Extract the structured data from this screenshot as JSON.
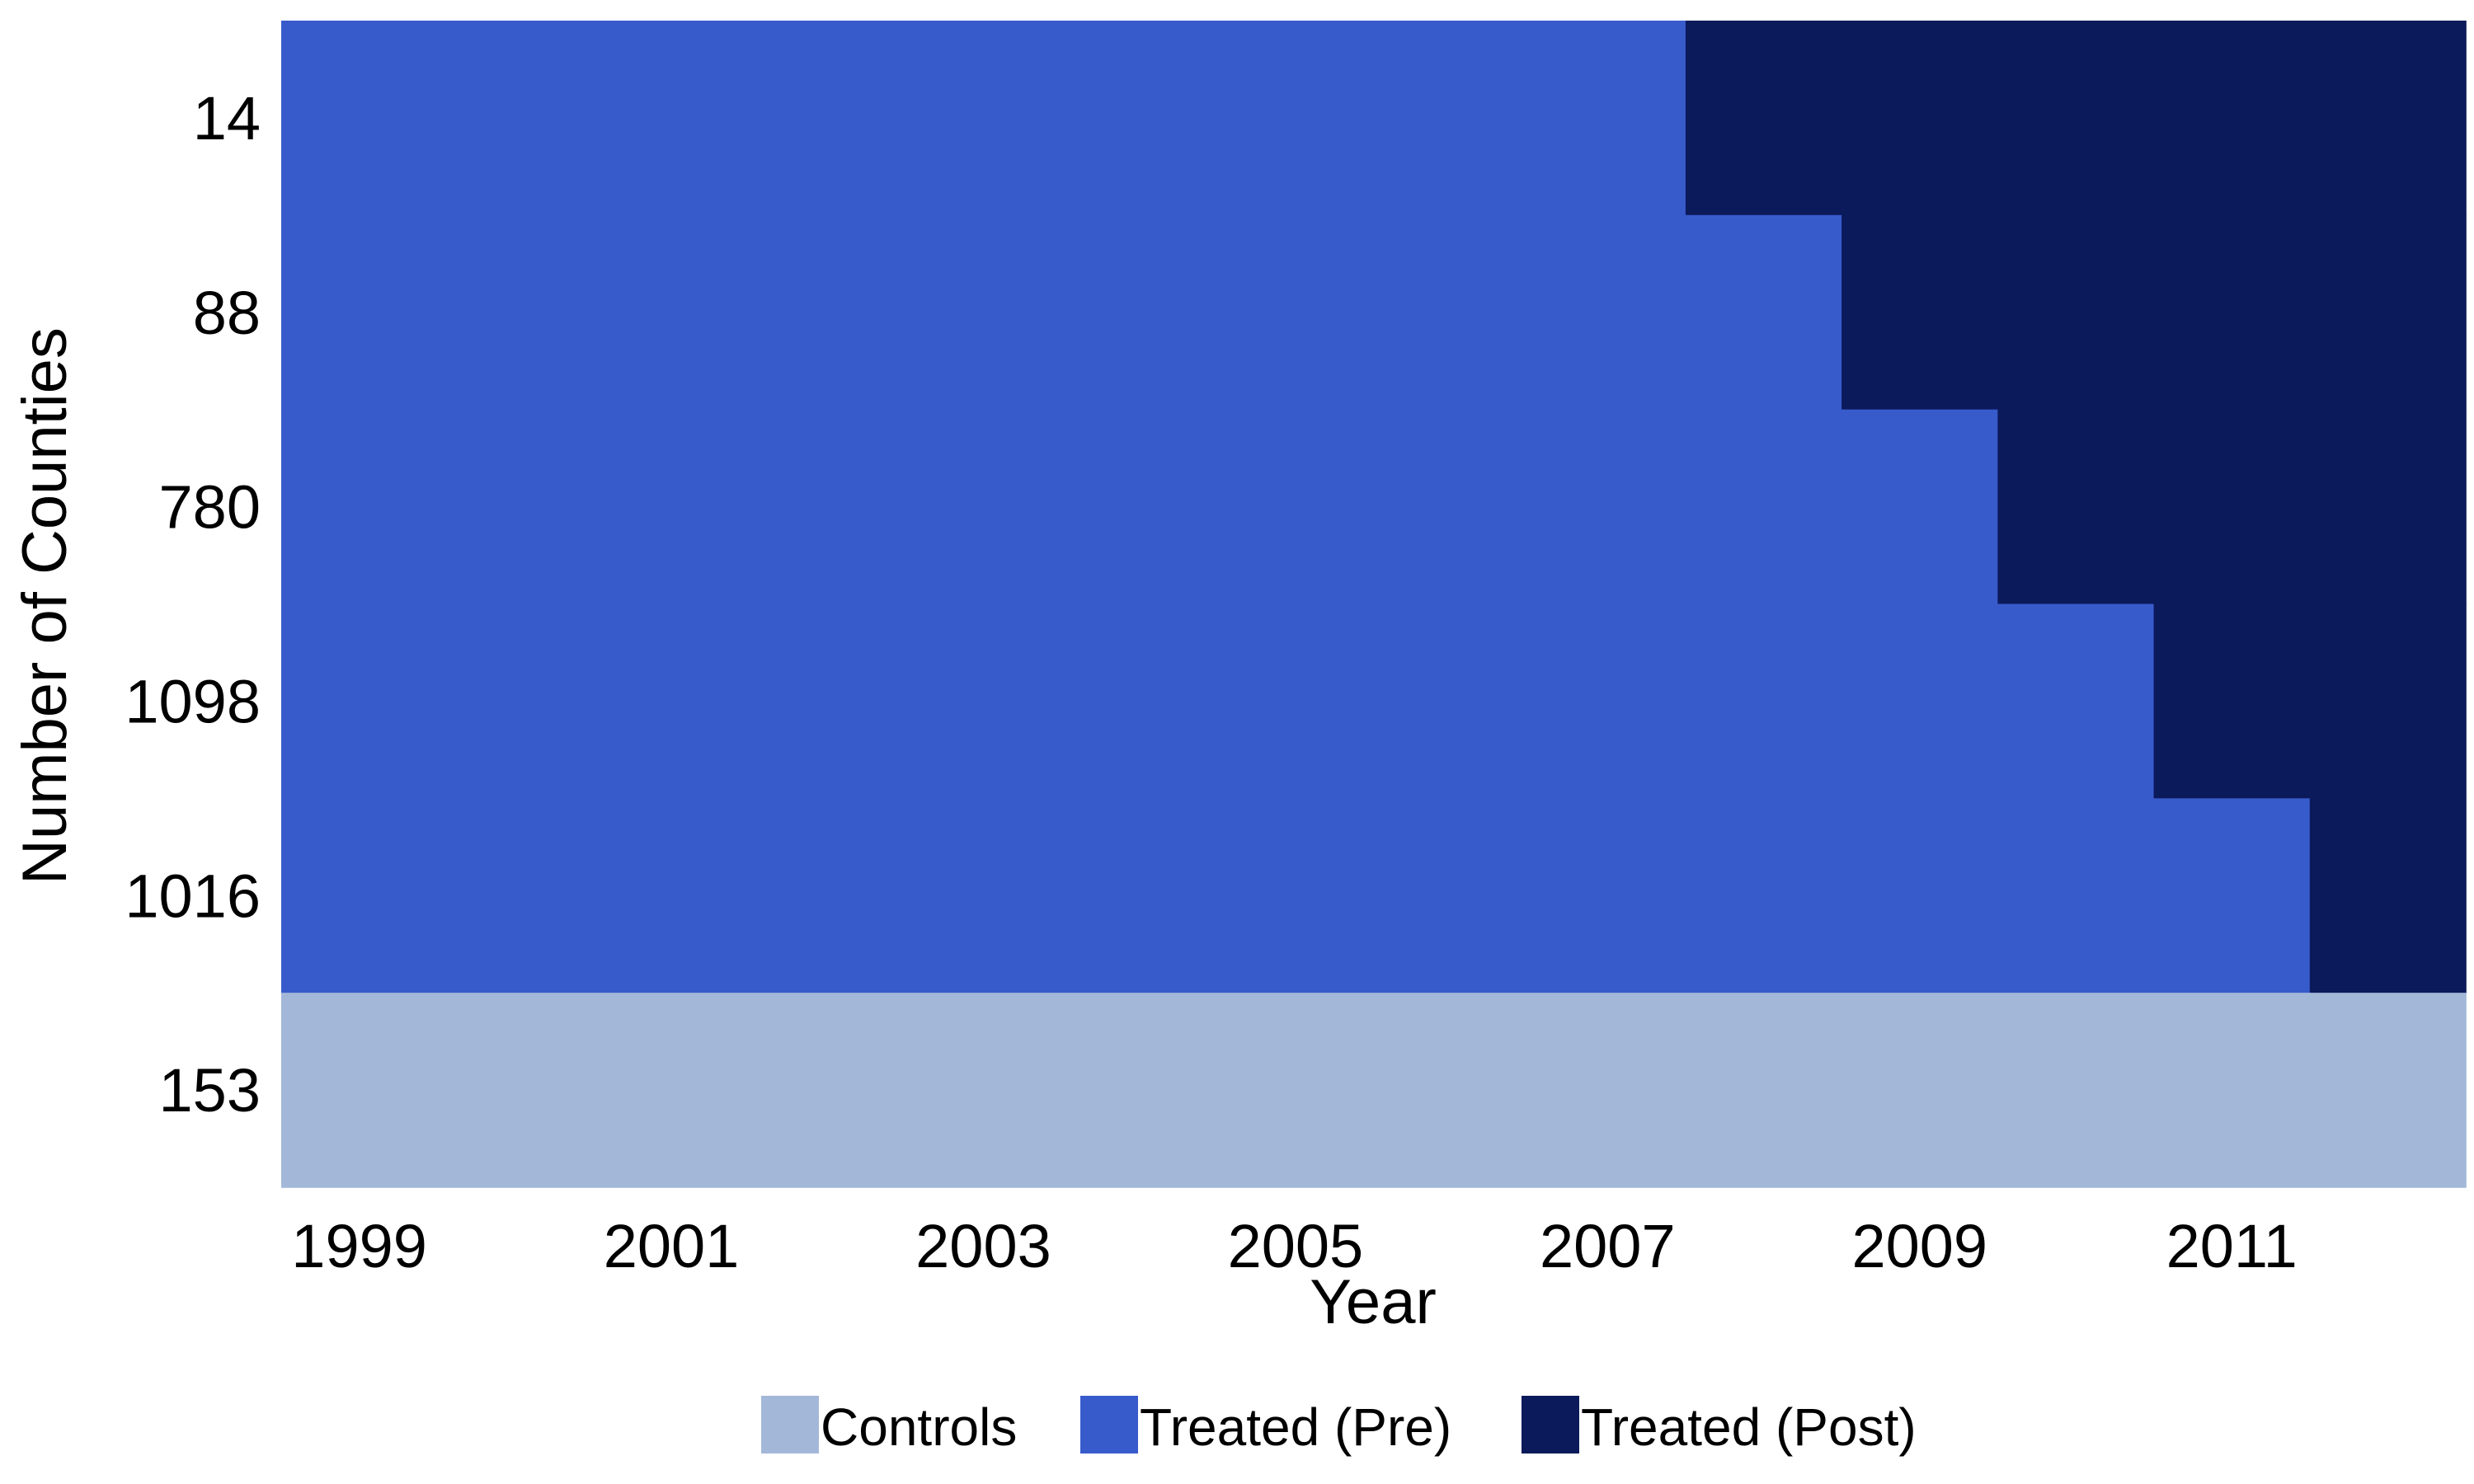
{
  "chart_data": {
    "type": "heatmap",
    "title": "",
    "xlabel": "Year",
    "ylabel": "Number of Counties",
    "years": [
      1999,
      2000,
      2001,
      2002,
      2003,
      2004,
      2005,
      2006,
      2007,
      2008,
      2009,
      2010,
      2011,
      2012
    ],
    "x_ticks": [
      "1999",
      "2001",
      "2003",
      "2005",
      "2007",
      "2009",
      "2011"
    ],
    "rows": [
      {
        "label": "14",
        "group": "Treated",
        "first_treated_year": 2008
      },
      {
        "label": "88",
        "group": "Treated",
        "first_treated_year": 2009
      },
      {
        "label": "780",
        "group": "Treated",
        "first_treated_year": 2010
      },
      {
        "label": "1098",
        "group": "Treated",
        "first_treated_year": 2011
      },
      {
        "label": "1016",
        "group": "Treated",
        "first_treated_year": 2012
      },
      {
        "label": "153",
        "group": "Controls",
        "first_treated_year": null
      }
    ],
    "legend": {
      "position": "bottom",
      "items": [
        {
          "label": "Controls",
          "color": "#a3b8d8"
        },
        {
          "label": "Treated (Pre)",
          "color": "#385bcc"
        },
        {
          "label": "Treated (Post)",
          "color": "#0b1a5b"
        }
      ]
    },
    "grid": false
  }
}
